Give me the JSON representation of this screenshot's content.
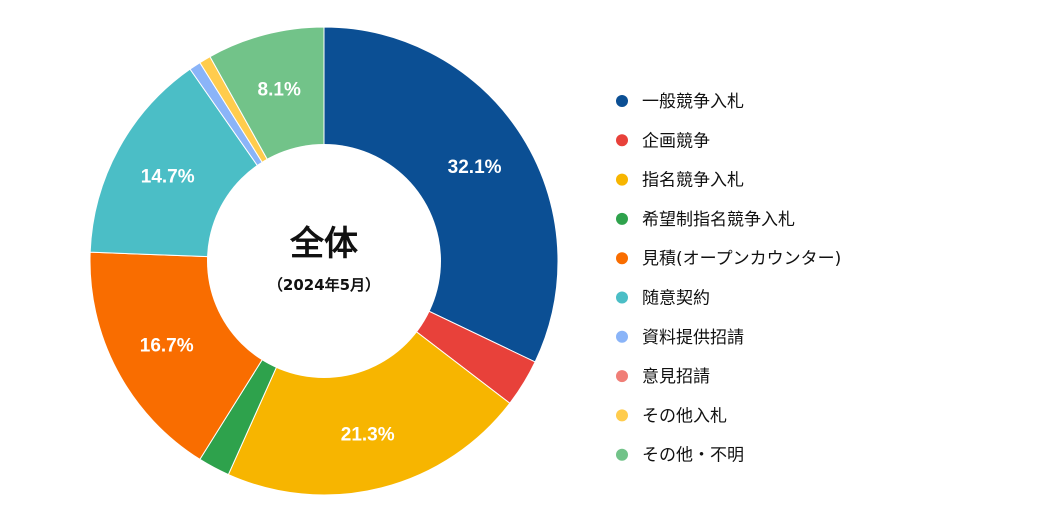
{
  "chart_data": {
    "type": "pie",
    "title": "全体",
    "subtitle": "（2024年5月）",
    "legend_position": "right",
    "categories": [
      "一般競争入札",
      "企画競争",
      "指名競争入札",
      "希望制指名競争入札",
      "見積(オープンカウンター)",
      "随意契約",
      "資料提供招請",
      "意見招請",
      "その他入札",
      "その他・不明"
    ],
    "values": [
      32.1,
      3.3,
      21.3,
      2.2,
      16.7,
      14.7,
      0.8,
      0.0,
      0.8,
      8.1
    ],
    "data_labels": [
      "32.1%",
      "",
      "21.3%",
      "",
      "16.7%",
      "14.7%",
      "",
      "",
      "",
      "8.1%"
    ],
    "colors": [
      "#0B4F94",
      "#E8413A",
      "#F7B500",
      "#2EA24C",
      "#F96D00",
      "#4BBEC6",
      "#8AB4F8",
      "#F07E77",
      "#FFCC4D",
      "#72C389"
    ]
  }
}
